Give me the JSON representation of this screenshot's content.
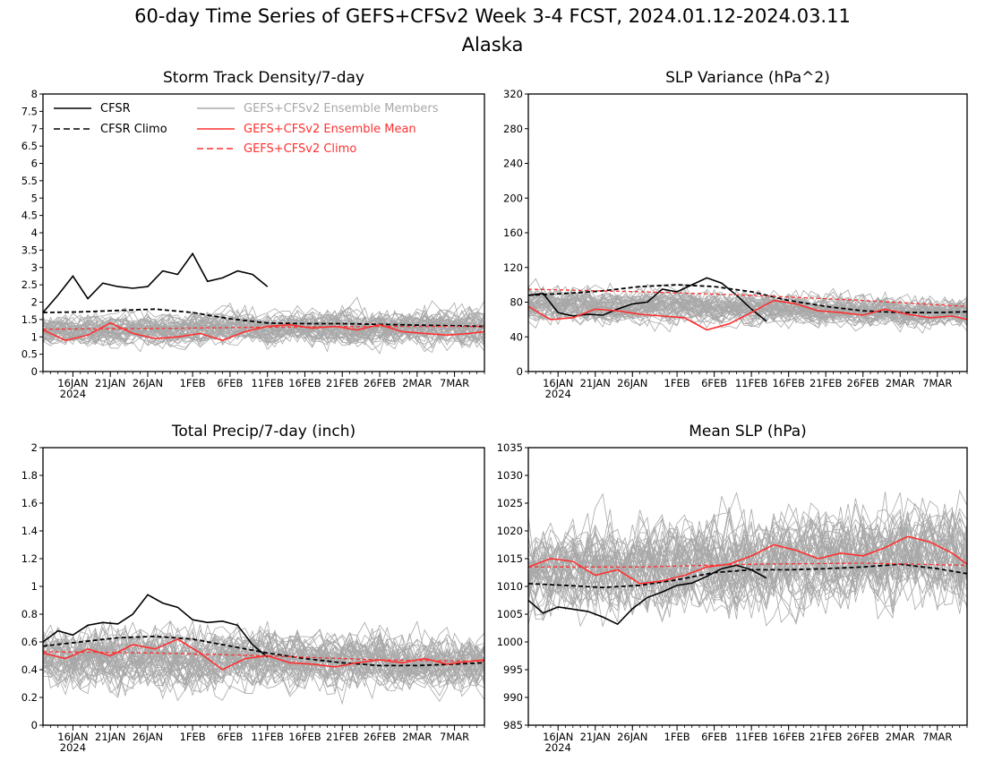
{
  "figure": {
    "title_line1": "60-day Time Series of GEFS+CFSv2 Week 3-4 FCST, 2024.01.12-2024.03.11",
    "title_line2": "Alaska"
  },
  "colors": {
    "cfsr": "#000000",
    "members": "#a8a8a8",
    "ens_mean": "#ff3030",
    "axis": "#000000"
  },
  "legend": {
    "placement": "top-left of first panel",
    "entries": [
      {
        "label": "CFSR",
        "color": "#000000",
        "dash": "solid"
      },
      {
        "label": "CFSR Climo",
        "color": "#000000",
        "dash": "dashed"
      },
      {
        "label": "GEFS+CFSv2 Ensemble Members",
        "color": "#a8a8a8",
        "dash": "solid"
      },
      {
        "label": "GEFS+CFSv2 Ensemble Mean",
        "color": "#ff3030",
        "dash": "solid"
      },
      {
        "label": "GEFS+CFSv2 Climo",
        "color": "#ff3030",
        "dash": "dashed"
      }
    ]
  },
  "chart_data": [
    {
      "type": "line",
      "title": "Storm Track Density/7-day",
      "x_range": [
        "2024-01-12",
        "2024-03-11"
      ],
      "x_ticks": [
        "16JAN",
        "21JAN",
        "26JAN",
        "1FEB",
        "6FEB",
        "11FEB",
        "16FEB",
        "21FEB",
        "26FEB",
        "2MAR",
        "7MAR"
      ],
      "x_year_label": "2024",
      "ylim": [
        0,
        8
      ],
      "y_ticks": [
        "0",
        "0.5",
        "1",
        "1.5",
        "2",
        "2.5",
        "3",
        "3.5",
        "4",
        "4.5",
        "5",
        "5.5",
        "6",
        "6.5",
        "7",
        "7.5",
        "8"
      ],
      "series": [
        {
          "name": "CFSR",
          "x": [
            0,
            2,
            4,
            6,
            8,
            10,
            12,
            14,
            16,
            18,
            20,
            22,
            24,
            26,
            28,
            30
          ],
          "y": [
            1.7,
            2.2,
            2.75,
            2.1,
            2.55,
            2.45,
            2.4,
            2.45,
            2.9,
            2.8,
            3.4,
            2.6,
            2.7,
            2.9,
            2.8,
            2.45
          ]
        },
        {
          "name": "CFSR Climo",
          "x": [
            0,
            5,
            10,
            15,
            20,
            25,
            30,
            35,
            40,
            45,
            50,
            55,
            59
          ],
          "y": [
            1.7,
            1.72,
            1.76,
            1.8,
            1.7,
            1.52,
            1.4,
            1.38,
            1.38,
            1.36,
            1.34,
            1.32,
            1.3
          ]
        },
        {
          "name": "GEFS+CFSv2 Ensemble Mean",
          "x": [
            0,
            3,
            6,
            9,
            12,
            15,
            18,
            21,
            24,
            27,
            30,
            33,
            36,
            39,
            42,
            45,
            48,
            51,
            54,
            57,
            59
          ],
          "y": [
            1.2,
            0.9,
            1.05,
            1.4,
            1.1,
            0.95,
            1.0,
            1.1,
            0.9,
            1.15,
            1.3,
            1.35,
            1.25,
            1.3,
            1.2,
            1.35,
            1.15,
            1.1,
            1.05,
            1.1,
            1.15
          ]
        },
        {
          "name": "GEFS+CFSv2 Climo",
          "x": [
            0,
            15,
            30,
            45,
            59
          ],
          "y": [
            1.22,
            1.24,
            1.28,
            1.3,
            1.3
          ]
        }
      ],
      "member_count": 48,
      "member_center": [
        1.2,
        1.3
      ],
      "member_spread": [
        0.7,
        1.0
      ]
    },
    {
      "type": "line",
      "title": "SLP Variance (hPa^2)",
      "x_range": [
        "2024-01-12",
        "2024-03-11"
      ],
      "x_ticks": [
        "16JAN",
        "21JAN",
        "26JAN",
        "1FEB",
        "6FEB",
        "11FEB",
        "16FEB",
        "21FEB",
        "26FEB",
        "2MAR",
        "7MAR"
      ],
      "x_year_label": "2024",
      "ylim": [
        0,
        320
      ],
      "y_ticks": [
        "0",
        "40",
        "80",
        "120",
        "160",
        "200",
        "240",
        "280",
        "320"
      ],
      "series": [
        {
          "name": "CFSR",
          "x": [
            0,
            2,
            4,
            6,
            8,
            10,
            12,
            14,
            16,
            18,
            20,
            22,
            24,
            26,
            28,
            30,
            32
          ],
          "y": [
            88,
            90,
            68,
            64,
            66,
            65,
            72,
            78,
            80,
            95,
            92,
            100,
            108,
            102,
            88,
            72,
            58
          ]
        },
        {
          "name": "CFSR Climo",
          "x": [
            0,
            5,
            10,
            15,
            20,
            25,
            30,
            35,
            40,
            45,
            50,
            55,
            59
          ],
          "y": [
            88,
            90,
            93,
            98,
            100,
            98,
            92,
            82,
            75,
            70,
            68,
            68,
            69
          ]
        },
        {
          "name": "GEFS+CFSv2 Ensemble Mean",
          "x": [
            0,
            3,
            6,
            9,
            12,
            15,
            18,
            21,
            24,
            27,
            30,
            33,
            36,
            39,
            42,
            45,
            48,
            51,
            54,
            57,
            59
          ],
          "y": [
            75,
            60,
            62,
            72,
            70,
            66,
            64,
            62,
            48,
            55,
            68,
            82,
            78,
            70,
            68,
            65,
            72,
            66,
            62,
            64,
            60
          ]
        },
        {
          "name": "GEFS+CFSv2 Climo",
          "x": [
            0,
            15,
            30,
            45,
            59
          ],
          "y": [
            95,
            92,
            88,
            82,
            75
          ]
        }
      ],
      "member_count": 48,
      "member_center": [
        78,
        68
      ],
      "member_spread": [
        35,
        30
      ]
    },
    {
      "type": "line",
      "title": "Total Precip/7-day (inch)",
      "x_range": [
        "2024-01-12",
        "2024-03-11"
      ],
      "x_ticks": [
        "16JAN",
        "21JAN",
        "26JAN",
        "1FEB",
        "6FEB",
        "11FEB",
        "16FEB",
        "21FEB",
        "26FEB",
        "2MAR",
        "7MAR"
      ],
      "x_year_label": "2024",
      "ylim": [
        0,
        2
      ],
      "y_ticks": [
        "0",
        "0.2",
        "0.4",
        "0.6",
        "0.8",
        "1",
        "1.2",
        "1.4",
        "1.6",
        "1.8",
        "2"
      ],
      "series": [
        {
          "name": "CFSR",
          "x": [
            0,
            2,
            4,
            6,
            8,
            10,
            12,
            14,
            16,
            18,
            20,
            22,
            24,
            26,
            28,
            30
          ],
          "y": [
            0.6,
            0.68,
            0.65,
            0.72,
            0.74,
            0.73,
            0.8,
            0.94,
            0.88,
            0.85,
            0.76,
            0.74,
            0.75,
            0.72,
            0.58,
            0.49
          ]
        },
        {
          "name": "CFSR Climo",
          "x": [
            0,
            5,
            10,
            15,
            20,
            25,
            30,
            35,
            40,
            45,
            50,
            55,
            59
          ],
          "y": [
            0.57,
            0.6,
            0.63,
            0.64,
            0.62,
            0.57,
            0.52,
            0.48,
            0.45,
            0.43,
            0.43,
            0.44,
            0.45
          ]
        },
        {
          "name": "GEFS+CFSv2 Ensemble Mean",
          "x": [
            0,
            3,
            6,
            9,
            12,
            15,
            18,
            21,
            24,
            27,
            30,
            33,
            36,
            39,
            42,
            45,
            48,
            51,
            54,
            57,
            59
          ],
          "y": [
            0.52,
            0.48,
            0.55,
            0.5,
            0.58,
            0.55,
            0.62,
            0.52,
            0.4,
            0.48,
            0.5,
            0.45,
            0.44,
            0.42,
            0.45,
            0.47,
            0.45,
            0.48,
            0.44,
            0.46,
            0.47
          ]
        },
        {
          "name": "GEFS+CFSv2 Climo",
          "x": [
            0,
            15,
            30,
            45,
            59
          ],
          "y": [
            0.53,
            0.52,
            0.5,
            0.47,
            0.46
          ]
        }
      ],
      "member_count": 48,
      "member_center": [
        0.5,
        0.45
      ],
      "member_spread": [
        0.4,
        0.35
      ]
    },
    {
      "type": "line",
      "title": "Mean SLP (hPa)",
      "x_range": [
        "2024-01-12",
        "2024-03-11"
      ],
      "x_ticks": [
        "16JAN",
        "21JAN",
        "26JAN",
        "1FEB",
        "6FEB",
        "11FEB",
        "16FEB",
        "21FEB",
        "26FEB",
        "2MAR",
        "7MAR"
      ],
      "x_year_label": "2024",
      "ylim": [
        985,
        1035
      ],
      "y_ticks": [
        "985",
        "990",
        "995",
        "1000",
        "1005",
        "1010",
        "1015",
        "1020",
        "1025",
        "1030",
        "1035"
      ],
      "series": [
        {
          "name": "CFSR",
          "x": [
            0,
            2,
            4,
            6,
            8,
            10,
            12,
            14,
            16,
            18,
            20,
            22,
            24,
            26,
            28,
            30,
            32
          ],
          "y": [
            1007.5,
            1005.2,
            1006.3,
            1005.9,
            1005.5,
            1004.5,
            1003.2,
            1006.0,
            1008.0,
            1009.0,
            1010.2,
            1010.6,
            1011.8,
            1013.2,
            1013.8,
            1013.0,
            1011.5
          ]
        },
        {
          "name": "CFSR Climo",
          "x": [
            0,
            5,
            10,
            15,
            20,
            25,
            30,
            35,
            40,
            45,
            50,
            55,
            59
          ],
          "y": [
            1010.5,
            1010.2,
            1009.8,
            1010.2,
            1011.2,
            1012.5,
            1013.0,
            1013.0,
            1013.2,
            1013.5,
            1014.0,
            1013.2,
            1012.3
          ]
        },
        {
          "name": "GEFS+CFSv2 Ensemble Mean",
          "x": [
            0,
            3,
            6,
            9,
            12,
            15,
            18,
            21,
            24,
            27,
            30,
            33,
            36,
            39,
            42,
            45,
            48,
            51,
            54,
            57,
            59
          ],
          "y": [
            1013.5,
            1015.0,
            1014.5,
            1012.0,
            1013.0,
            1010.5,
            1011.0,
            1012.0,
            1013.5,
            1014.0,
            1015.5,
            1017.5,
            1016.5,
            1015.0,
            1016.0,
            1015.5,
            1017.0,
            1019.0,
            1018.0,
            1016.0,
            1014.0
          ]
        },
        {
          "name": "GEFS+CFSv2 Climo",
          "x": [
            0,
            15,
            30,
            45,
            59
          ],
          "y": [
            1013.5,
            1013.5,
            1014.0,
            1014.2,
            1013.8
          ]
        }
      ],
      "member_count": 48,
      "member_center": [
        1013,
        1016
      ],
      "member_spread": [
        14,
        16
      ]
    }
  ]
}
